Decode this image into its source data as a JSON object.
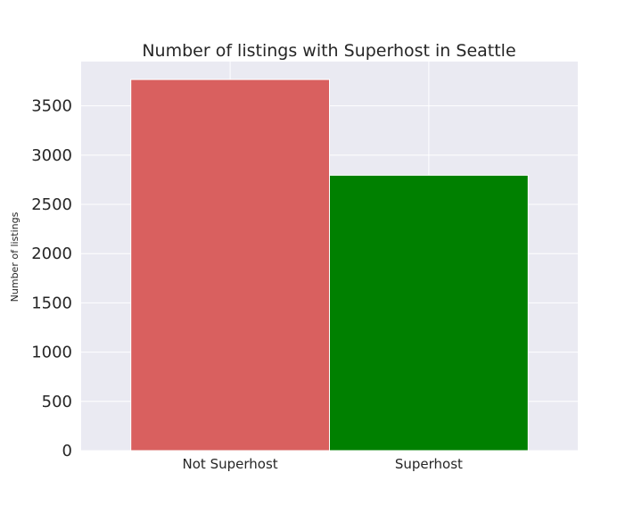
{
  "chart_data": {
    "type": "bar",
    "title": "Number of listings with Superhost in Seattle",
    "xlabel": "",
    "ylabel": "Number of listings",
    "categories": [
      "Not Superhost",
      "Superhost"
    ],
    "values": [
      3768,
      2796
    ],
    "colors": [
      "#d9605f",
      "#008000"
    ],
    "ylim": [
      0,
      3950
    ],
    "yticks": [
      0,
      500,
      1000,
      1500,
      2000,
      2500,
      3000,
      3500
    ],
    "grid": true,
    "background": "#eaeaf2"
  }
}
